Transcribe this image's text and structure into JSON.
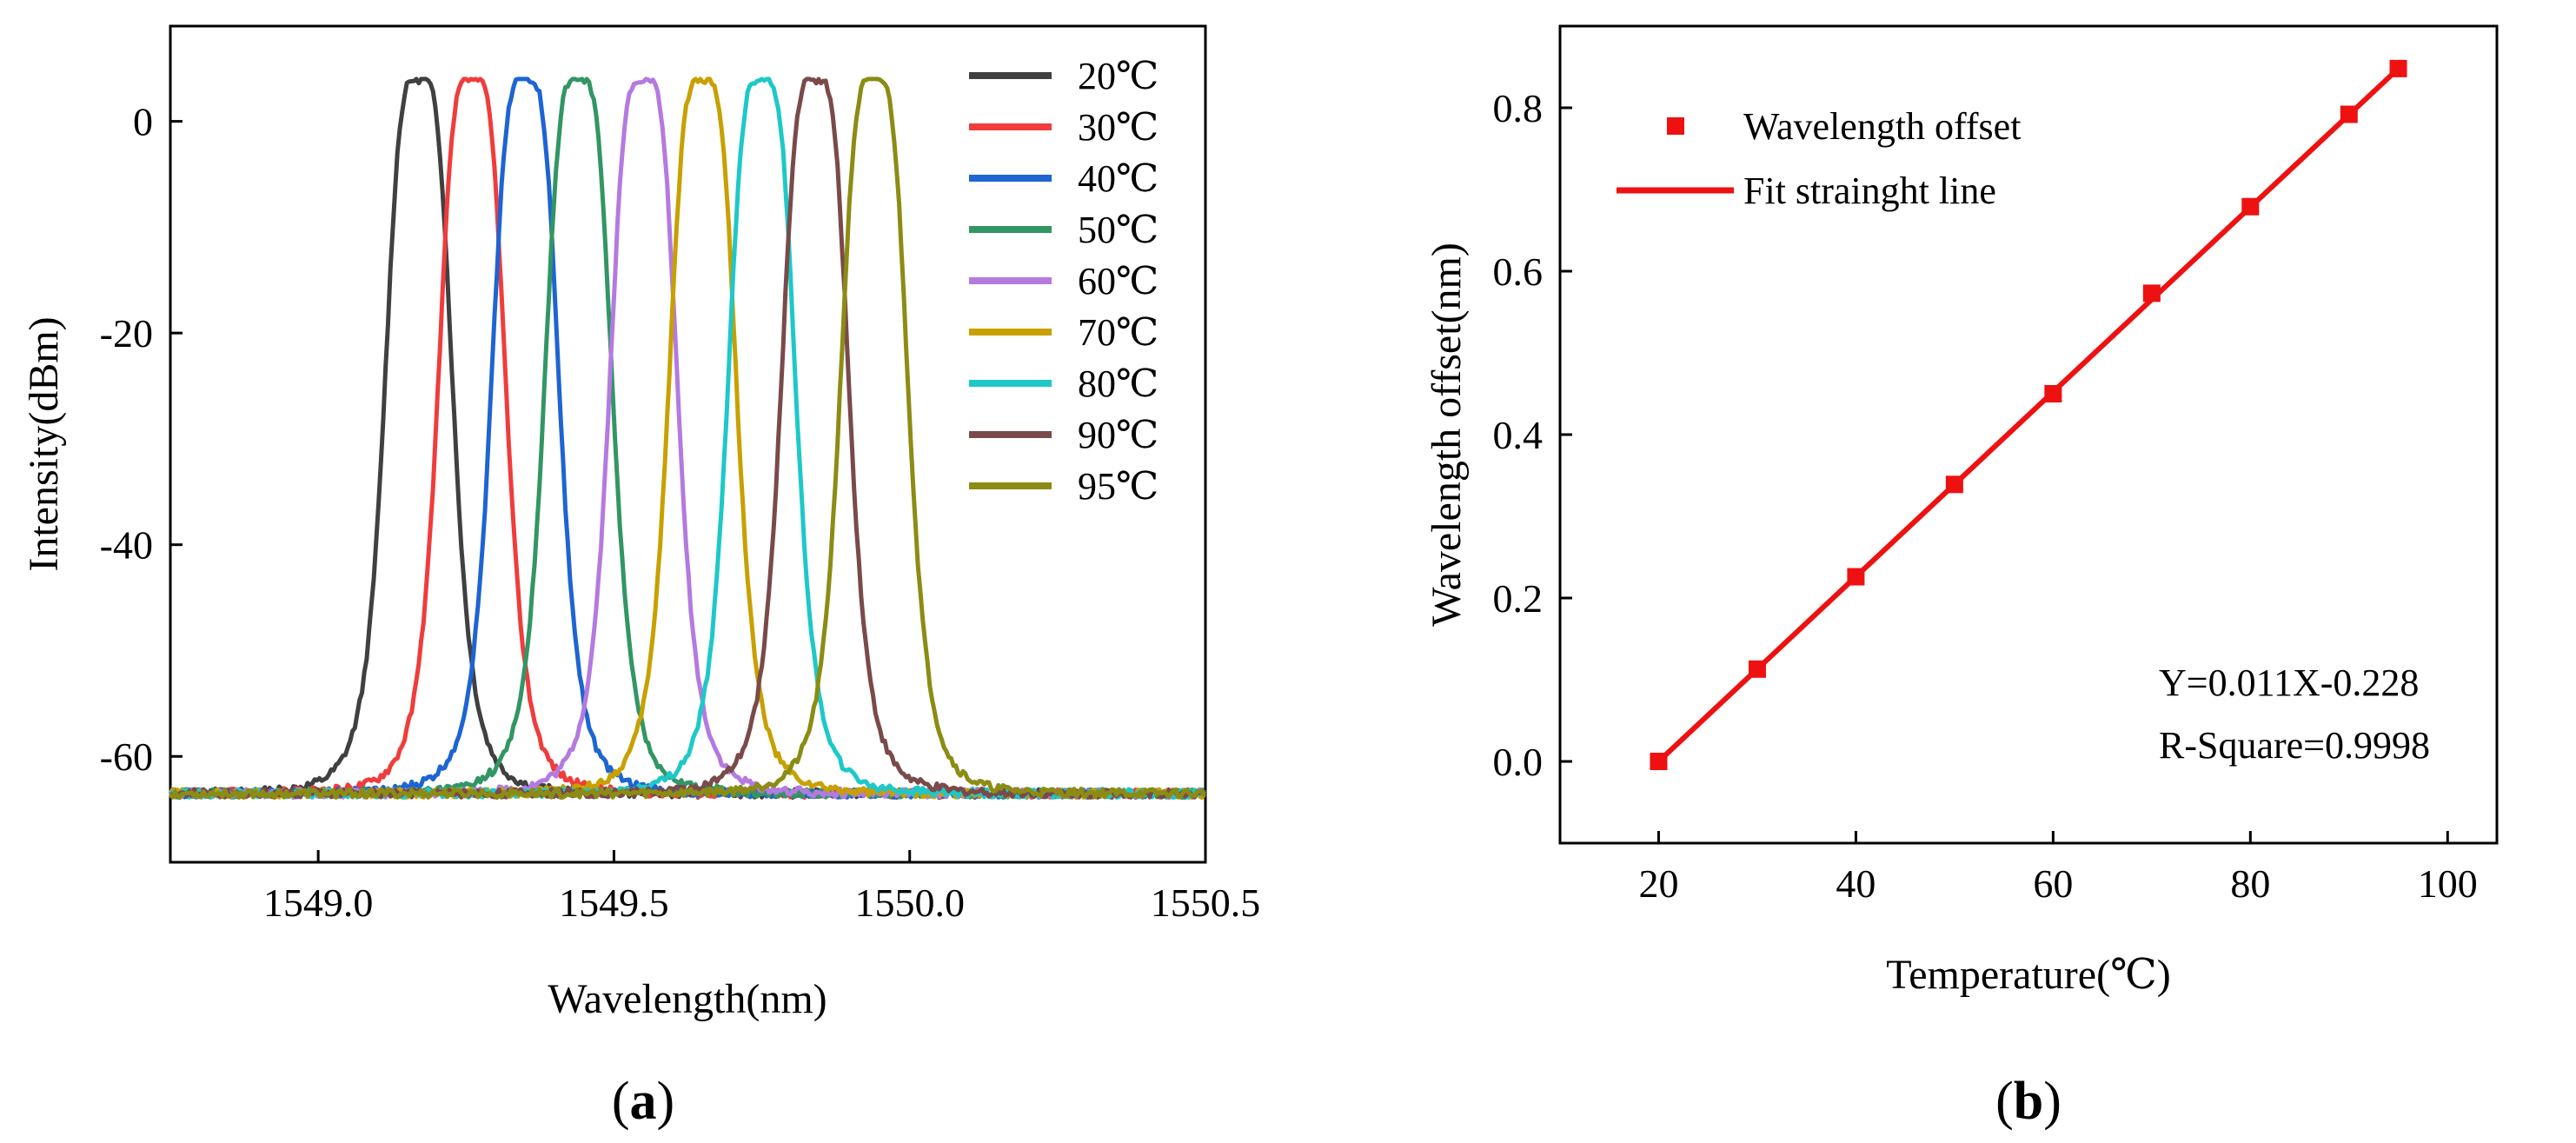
{
  "figure": {
    "panel_labels": [
      {
        "open": "(",
        "letter": "a",
        "close": ")"
      },
      {
        "open": "(",
        "letter": "b",
        "close": ")"
      }
    ]
  },
  "chart_data": [
    {
      "type": "line",
      "panel": "a",
      "title": "",
      "xlabel": "Wavelength(nm)",
      "ylabel": "Intensity(dBm)",
      "xlim": [
        1548.75,
        1550.5
      ],
      "ylim": [
        -70,
        9
      ],
      "xticks": [
        1549.0,
        1549.5,
        1550.0,
        1550.5
      ],
      "xtick_labels": [
        "1549.0",
        "1549.5",
        "1550.0",
        "1550.5"
      ],
      "yticks": [
        0,
        -20,
        -40,
        -60
      ],
      "ytick_labels": [
        "0",
        "-20",
        "-40",
        "-60"
      ],
      "legend_position": "top-right",
      "peak_dbm": 4,
      "floor_dbm": -63.5,
      "series": [
        {
          "name": "20℃",
          "color": "#404040",
          "peak_wavelength": 1549.17
        },
        {
          "name": "30℃",
          "color": "#f03c3c",
          "peak_wavelength": 1549.26
        },
        {
          "name": "40℃",
          "color": "#1e64d2",
          "peak_wavelength": 1549.35
        },
        {
          "name": "50℃",
          "color": "#329664",
          "peak_wavelength": 1549.44
        },
        {
          "name": "60℃",
          "color": "#b47ae0",
          "peak_wavelength": 1549.55
        },
        {
          "name": "70℃",
          "color": "#c8a000",
          "peak_wavelength": 1549.65
        },
        {
          "name": "80℃",
          "color": "#1ec8c8",
          "peak_wavelength": 1549.75
        },
        {
          "name": "90℃",
          "color": "#7a4a4a",
          "peak_wavelength": 1549.84
        },
        {
          "name": "95℃",
          "color": "#8c8c14",
          "peak_wavelength": 1549.94
        }
      ]
    },
    {
      "type": "scatter",
      "panel": "b",
      "title": "",
      "xlabel": "Temperature(℃)",
      "ylabel": "Wavelength offset(nm)",
      "xlim": [
        10,
        105
      ],
      "ylim": [
        -0.1,
        0.9
      ],
      "xticks": [
        20,
        40,
        60,
        80,
        100
      ],
      "xtick_labels": [
        "20",
        "40",
        "60",
        "80",
        "100"
      ],
      "yticks": [
        0.0,
        0.2,
        0.4,
        0.6,
        0.8
      ],
      "ytick_labels": [
        "0.0",
        "0.2",
        "0.4",
        "0.6",
        "0.8"
      ],
      "legend_position": "top-left",
      "series": [
        {
          "name": "Wavelength offset",
          "marker": "square",
          "color": "#ee1111",
          "x": [
            20,
            30,
            40,
            50,
            60,
            70,
            80,
            90,
            95
          ],
          "y": [
            0.0,
            0.113,
            0.226,
            0.339,
            0.45,
            0.573,
            0.679,
            0.792,
            0.848
          ]
        },
        {
          "name": "Fit strainght line",
          "line": true,
          "color": "#ee1111",
          "x": [
            20,
            95
          ],
          "y": [
            0.0,
            0.848
          ]
        }
      ],
      "annotations": [
        "Y=0.011X-0.228",
        "R-Square=0.9998"
      ]
    }
  ]
}
